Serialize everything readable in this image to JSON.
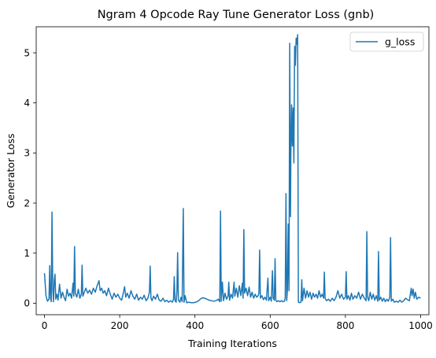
{
  "chart_data": {
    "type": "line",
    "title": "Ngram 4 Opcode Ray Tune Generator Loss (gnb)",
    "xlabel": "Training Iterations",
    "ylabel": "Generator Loss",
    "xlim": [
      -22,
      1022
    ],
    "ylim": [
      -0.23,
      5.52
    ],
    "xticks": [
      0,
      200,
      400,
      600,
      800,
      1000
    ],
    "yticks": [
      0,
      1,
      2,
      3,
      4,
      5
    ],
    "grid": false,
    "legend_position": "top-right",
    "series": [
      {
        "name": "g_loss",
        "color": "#1f77b4",
        "points": [
          [
            0,
            0.6
          ],
          [
            4,
            0.15
          ],
          [
            8,
            0.04
          ],
          [
            12,
            0.08
          ],
          [
            14,
            0.75
          ],
          [
            16,
            0.1
          ],
          [
            18,
            0.03
          ],
          [
            20,
            1.82
          ],
          [
            22,
            0.3
          ],
          [
            24,
            0.03
          ],
          [
            26,
            0.45
          ],
          [
            28,
            0.58
          ],
          [
            30,
            0.08
          ],
          [
            33,
            0.18
          ],
          [
            36,
            0.06
          ],
          [
            40,
            0.38
          ],
          [
            44,
            0.1
          ],
          [
            48,
            0.22
          ],
          [
            52,
            0.12
          ],
          [
            56,
            0.05
          ],
          [
            60,
            0.28
          ],
          [
            64,
            0.14
          ],
          [
            68,
            0.2
          ],
          [
            72,
            0.1
          ],
          [
            76,
            0.4
          ],
          [
            78,
            0.14
          ],
          [
            80,
            1.13
          ],
          [
            82,
            0.2
          ],
          [
            86,
            0.12
          ],
          [
            90,
            0.28
          ],
          [
            94,
            0.1
          ],
          [
            98,
            0.18
          ],
          [
            100,
            0.76
          ],
          [
            102,
            0.14
          ],
          [
            106,
            0.22
          ],
          [
            110,
            0.3
          ],
          [
            115,
            0.2
          ],
          [
            120,
            0.26
          ],
          [
            125,
            0.18
          ],
          [
            130,
            0.3
          ],
          [
            135,
            0.22
          ],
          [
            140,
            0.35
          ],
          [
            145,
            0.45
          ],
          [
            148,
            0.25
          ],
          [
            152,
            0.3
          ],
          [
            156,
            0.2
          ],
          [
            160,
            0.25
          ],
          [
            165,
            0.15
          ],
          [
            170,
            0.3
          ],
          [
            175,
            0.18
          ],
          [
            180,
            0.08
          ],
          [
            185,
            0.2
          ],
          [
            190,
            0.12
          ],
          [
            195,
            0.18
          ],
          [
            200,
            0.1
          ],
          [
            205,
            0.06
          ],
          [
            210,
            0.22
          ],
          [
            213,
            0.33
          ],
          [
            216,
            0.12
          ],
          [
            220,
            0.2
          ],
          [
            225,
            0.1
          ],
          [
            230,
            0.25
          ],
          [
            235,
            0.14
          ],
          [
            240,
            0.08
          ],
          [
            245,
            0.18
          ],
          [
            250,
            0.06
          ],
          [
            255,
            0.12
          ],
          [
            260,
            0.08
          ],
          [
            265,
            0.16
          ],
          [
            270,
            0.05
          ],
          [
            275,
            0.1
          ],
          [
            279,
            0.22
          ],
          [
            281,
            0.74
          ],
          [
            283,
            0.1
          ],
          [
            286,
            0.05
          ],
          [
            290,
            0.14
          ],
          [
            295,
            0.08
          ],
          [
            300,
            0.18
          ],
          [
            305,
            0.06
          ],
          [
            310,
            0.04
          ],
          [
            315,
            0.1
          ],
          [
            320,
            0.03
          ],
          [
            325,
            0.06
          ],
          [
            330,
            0.02
          ],
          [
            335,
            0.05
          ],
          [
            340,
            0.02
          ],
          [
            343,
            0.08
          ],
          [
            345,
            0.53
          ],
          [
            347,
            0.05
          ],
          [
            350,
            0.02
          ],
          [
            352,
            0.22
          ],
          [
            354,
            1.01
          ],
          [
            356,
            0.06
          ],
          [
            360,
            0.02
          ],
          [
            363,
            0.12
          ],
          [
            366,
            0.03
          ],
          [
            369,
            1.89
          ],
          [
            371,
            0.02
          ],
          [
            374,
            0.15
          ],
          [
            378,
            0.01
          ],
          [
            384,
            0.02
          ],
          [
            390,
            0.01
          ],
          [
            396,
            0.01
          ],
          [
            402,
            0.02
          ],
          [
            408,
            0.04
          ],
          [
            414,
            0.08
          ],
          [
            420,
            0.11
          ],
          [
            426,
            0.1
          ],
          [
            432,
            0.08
          ],
          [
            438,
            0.06
          ],
          [
            444,
            0.05
          ],
          [
            450,
            0.04
          ],
          [
            456,
            0.05
          ],
          [
            462,
            0.08
          ],
          [
            466,
            0.03
          ],
          [
            468,
            1.84
          ],
          [
            470,
            0.04
          ],
          [
            473,
            0.42
          ],
          [
            476,
            0.05
          ],
          [
            480,
            0.2
          ],
          [
            484,
            0.08
          ],
          [
            488,
            0.14
          ],
          [
            490,
            0.42
          ],
          [
            492,
            0.06
          ],
          [
            496,
            0.18
          ],
          [
            500,
            0.1
          ],
          [
            504,
            0.42
          ],
          [
            506,
            0.14
          ],
          [
            510,
            0.3
          ],
          [
            514,
            0.12
          ],
          [
            518,
            0.35
          ],
          [
            522,
            0.15
          ],
          [
            526,
            0.4
          ],
          [
            528,
            0.1
          ],
          [
            530,
            1.47
          ],
          [
            532,
            0.2
          ],
          [
            536,
            0.3
          ],
          [
            540,
            0.15
          ],
          [
            544,
            0.32
          ],
          [
            548,
            0.12
          ],
          [
            552,
            0.22
          ],
          [
            556,
            0.1
          ],
          [
            560,
            0.18
          ],
          [
            564,
            0.12
          ],
          [
            568,
            0.15
          ],
          [
            570,
            0.2
          ],
          [
            572,
            1.06
          ],
          [
            574,
            0.1
          ],
          [
            578,
            0.15
          ],
          [
            582,
            0.07
          ],
          [
            586,
            0.12
          ],
          [
            590,
            0.06
          ],
          [
            594,
            0.5
          ],
          [
            596,
            0.05
          ],
          [
            600,
            0.12
          ],
          [
            603,
            0.04
          ],
          [
            606,
            0.65
          ],
          [
            608,
            0.1
          ],
          [
            611,
            0.06
          ],
          [
            613,
            0.89
          ],
          [
            615,
            0.06
          ],
          [
            618,
            0.03
          ],
          [
            622,
            0.05
          ],
          [
            626,
            0.03
          ],
          [
            630,
            0.05
          ],
          [
            634,
            0.03
          ],
          [
            638,
            0.04
          ],
          [
            640,
            0.1
          ],
          [
            642,
            2.19
          ],
          [
            644,
            0.05
          ],
          [
            646,
            0.3
          ],
          [
            648,
            1.58
          ],
          [
            650,
            0.25
          ],
          [
            652,
            5.19
          ],
          [
            654,
            1.73
          ],
          [
            655,
            3.0
          ],
          [
            657,
            3.96
          ],
          [
            659,
            3.14
          ],
          [
            661,
            3.9
          ],
          [
            663,
            2.8
          ],
          [
            665,
            5.13
          ],
          [
            667,
            4.75
          ],
          [
            669,
            5.29
          ],
          [
            671,
            5.17
          ],
          [
            673,
            5.36
          ],
          [
            675,
            0.02
          ],
          [
            678,
            0.01
          ],
          [
            682,
            0.02
          ],
          [
            684,
            0.47
          ],
          [
            686,
            0.05
          ],
          [
            690,
            0.3
          ],
          [
            694,
            0.1
          ],
          [
            698,
            0.25
          ],
          [
            702,
            0.12
          ],
          [
            706,
            0.22
          ],
          [
            710,
            0.08
          ],
          [
            714,
            0.2
          ],
          [
            718,
            0.12
          ],
          [
            722,
            0.18
          ],
          [
            726,
            0.1
          ],
          [
            730,
            0.25
          ],
          [
            734,
            0.12
          ],
          [
            738,
            0.18
          ],
          [
            742,
            0.1
          ],
          [
            744,
            0.62
          ],
          [
            746,
            0.1
          ],
          [
            750,
            0.05
          ],
          [
            755,
            0.08
          ],
          [
            760,
            0.04
          ],
          [
            765,
            0.1
          ],
          [
            770,
            0.05
          ],
          [
            775,
            0.12
          ],
          [
            780,
            0.25
          ],
          [
            785,
            0.1
          ],
          [
            790,
            0.18
          ],
          [
            795,
            0.08
          ],
          [
            800,
            0.12
          ],
          [
            802,
            0.63
          ],
          [
            804,
            0.08
          ],
          [
            808,
            0.15
          ],
          [
            812,
            0.06
          ],
          [
            816,
            0.2
          ],
          [
            820,
            0.08
          ],
          [
            825,
            0.15
          ],
          [
            830,
            0.1
          ],
          [
            835,
            0.22
          ],
          [
            840,
            0.08
          ],
          [
            845,
            0.18
          ],
          [
            850,
            0.1
          ],
          [
            855,
            0.05
          ],
          [
            857,
            1.43
          ],
          [
            859,
            0.12
          ],
          [
            862,
            0.05
          ],
          [
            866,
            0.22
          ],
          [
            870,
            0.08
          ],
          [
            874,
            0.18
          ],
          [
            878,
            0.06
          ],
          [
            882,
            0.15
          ],
          [
            886,
            0.04
          ],
          [
            888,
            1.03
          ],
          [
            890,
            0.06
          ],
          [
            894,
            0.12
          ],
          [
            898,
            0.04
          ],
          [
            902,
            0.1
          ],
          [
            906,
            0.03
          ],
          [
            910,
            0.08
          ],
          [
            914,
            0.04
          ],
          [
            918,
            0.12
          ],
          [
            920,
            1.31
          ],
          [
            922,
            0.04
          ],
          [
            926,
            0.08
          ],
          [
            930,
            0.02
          ],
          [
            935,
            0.04
          ],
          [
            940,
            0.02
          ],
          [
            945,
            0.06
          ],
          [
            950,
            0.02
          ],
          [
            955,
            0.05
          ],
          [
            960,
            0.1
          ],
          [
            965,
            0.07
          ],
          [
            970,
            0.05
          ],
          [
            975,
            0.3
          ],
          [
            977,
            0.15
          ],
          [
            980,
            0.28
          ],
          [
            983,
            0.1
          ],
          [
            986,
            0.22
          ],
          [
            990,
            0.08
          ],
          [
            995,
            0.12
          ],
          [
            1000,
            0.1
          ]
        ]
      }
    ]
  }
}
